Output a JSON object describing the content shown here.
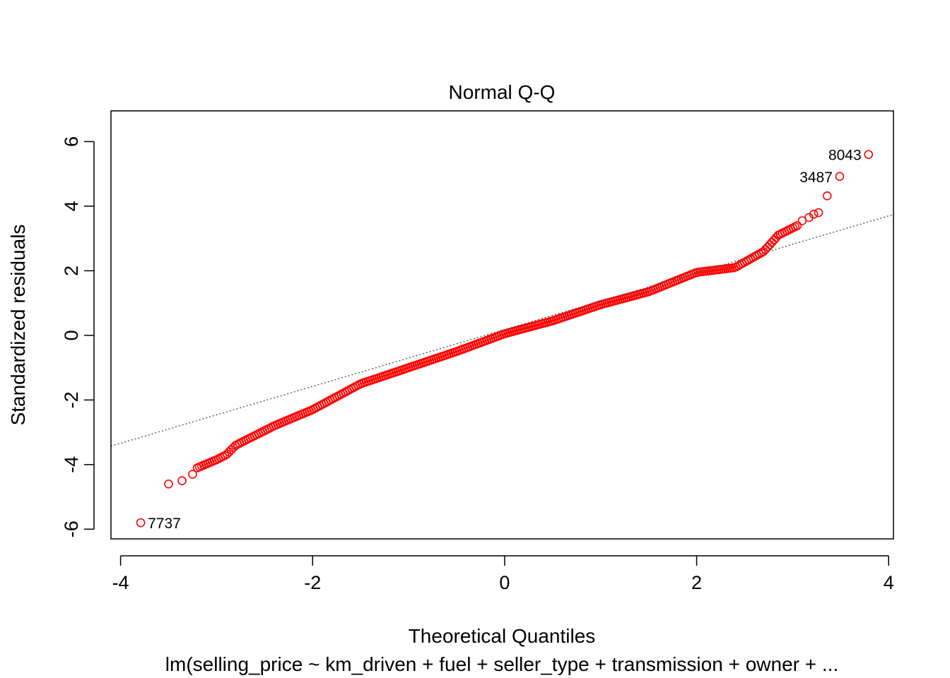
{
  "chart_data": {
    "type": "scatter",
    "title": "Normal Q-Q",
    "xlabel": "Theoretical Quantiles",
    "ylabel": "Standardized residuals",
    "subtitle": "lm(selling_price ~ km_driven + fuel + seller_type + transmission + owner +  ...",
    "xlim": [
      -4.1,
      4.05
    ],
    "ylim": [
      -6.3,
      6.95
    ],
    "xticks": [
      -4,
      -2,
      0,
      2,
      4
    ],
    "yticks": [
      -6,
      -4,
      -2,
      0,
      2,
      4,
      6
    ],
    "grid": false,
    "legend": "none",
    "point_color": "#ff0000",
    "reference_line": {
      "intercept": 0.18,
      "slope": 0.88,
      "style": "dotted",
      "color": "#555555"
    },
    "outliers": [
      {
        "label": "8043",
        "x": 3.79,
        "y": 5.6
      },
      {
        "label": "3487",
        "x": 3.49,
        "y": 4.92
      },
      {
        "label": "7737",
        "x": -3.79,
        "y": -5.8
      }
    ],
    "curve_knots": [
      {
        "x": -3.2,
        "y": -4.1
      },
      {
        "x": -3.0,
        "y": -3.85
      },
      {
        "x": -2.9,
        "y": -3.7
      },
      {
        "x": -2.8,
        "y": -3.4
      },
      {
        "x": -2.6,
        "y": -3.1
      },
      {
        "x": -2.4,
        "y": -2.8
      },
      {
        "x": -2.0,
        "y": -2.3
      },
      {
        "x": -1.5,
        "y": -1.5
      },
      {
        "x": -1.0,
        "y": -1.0
      },
      {
        "x": -0.5,
        "y": -0.5
      },
      {
        "x": 0.0,
        "y": 0.05
      },
      {
        "x": 0.5,
        "y": 0.45
      },
      {
        "x": 1.0,
        "y": 0.95
      },
      {
        "x": 1.5,
        "y": 1.35
      },
      {
        "x": 2.0,
        "y": 1.95
      },
      {
        "x": 2.4,
        "y": 2.1
      },
      {
        "x": 2.7,
        "y": 2.6
      },
      {
        "x": 2.85,
        "y": 3.1
      },
      {
        "x": 3.05,
        "y": 3.4
      }
    ],
    "tail_points": [
      {
        "x": -3.5,
        "y": -4.6
      },
      {
        "x": -3.36,
        "y": -4.5
      },
      {
        "x": -3.25,
        "y": -4.3
      },
      {
        "x": 3.1,
        "y": 3.55
      },
      {
        "x": 3.17,
        "y": 3.65
      },
      {
        "x": 3.22,
        "y": 3.75
      },
      {
        "x": 3.27,
        "y": 3.8
      },
      {
        "x": 3.36,
        "y": 4.32
      }
    ]
  }
}
